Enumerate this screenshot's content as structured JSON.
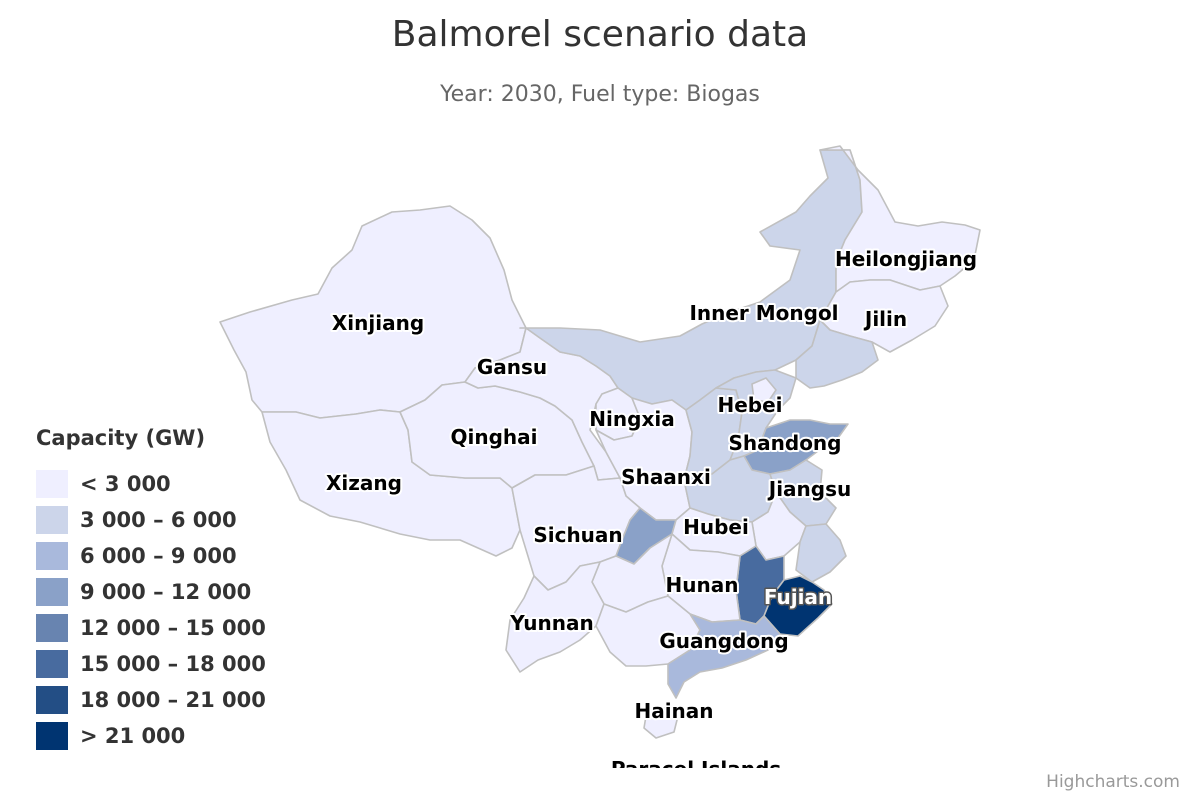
{
  "title": "Balmorel scenario data",
  "subtitle": "Year: 2030, Fuel type: Biogas",
  "credits": "Highcharts.com",
  "legend": {
    "title": "Capacity (GW)",
    "items": [
      {
        "label": "< 3 000",
        "color": "#efefff"
      },
      {
        "label": "3 000 – 6 000",
        "color": "#ccd5ea"
      },
      {
        "label": "6 000 – 9 000",
        "color": "#a9b9dc"
      },
      {
        "label": "9 000 – 12 000",
        "color": "#8aa1c8"
      },
      {
        "label": "12 000 – 15 000",
        "color": "#6884b0"
      },
      {
        "label": "15 000 – 18 000",
        "color": "#486b9f"
      },
      {
        "label": "18 000 – 21 000",
        "color": "#234e85"
      },
      {
        "label": "> 21 000",
        "color": "#003471"
      }
    ]
  },
  "regions": [
    {
      "id": "xinjiang",
      "label": "Xinjiang",
      "bin": 0
    },
    {
      "id": "xizang",
      "label": "Xizang",
      "bin": 0
    },
    {
      "id": "qinghai",
      "label": "Qinghai",
      "bin": 0
    },
    {
      "id": "gansu",
      "label": "Gansu",
      "bin": 0
    },
    {
      "id": "inner-mongol",
      "label": "Inner Mongol",
      "bin": 1
    },
    {
      "id": "heilongjiang",
      "label": "Heilongjiang",
      "bin": 0
    },
    {
      "id": "jilin",
      "label": "Jilin",
      "bin": 0
    },
    {
      "id": "liaoning",
      "label": "",
      "bin": 1
    },
    {
      "id": "ningxia",
      "label": "Ningxia",
      "bin": 0
    },
    {
      "id": "shaanxi",
      "label": "Shaanxi",
      "bin": 0
    },
    {
      "id": "shanxi",
      "label": "",
      "bin": 1
    },
    {
      "id": "hebei",
      "label": "Hebei",
      "bin": 1
    },
    {
      "id": "beijing",
      "label": "",
      "bin": 0
    },
    {
      "id": "shandong",
      "label": "Shandong",
      "bin": 3
    },
    {
      "id": "henan",
      "label": "",
      "bin": 1
    },
    {
      "id": "jiangsu",
      "label": "Jiangsu",
      "bin": 1
    },
    {
      "id": "anhui",
      "label": "",
      "bin": 0
    },
    {
      "id": "sichuan",
      "label": "Sichuan",
      "bin": 0
    },
    {
      "id": "chongqing",
      "label": "",
      "bin": 3
    },
    {
      "id": "hubei",
      "label": "Hubei",
      "bin": 0
    },
    {
      "id": "zhejiang",
      "label": "",
      "bin": 1
    },
    {
      "id": "jiangxi",
      "label": "",
      "bin": 5
    },
    {
      "id": "fujian",
      "label": "Fujian",
      "bin": 7
    },
    {
      "id": "hunan",
      "label": "Hunan",
      "bin": 0
    },
    {
      "id": "guizhou",
      "label": "",
      "bin": 0
    },
    {
      "id": "yunnan",
      "label": "Yunnan",
      "bin": 0
    },
    {
      "id": "guangxi",
      "label": "",
      "bin": 0
    },
    {
      "id": "guangdong",
      "label": "Guangdong",
      "bin": 2
    },
    {
      "id": "hainan",
      "label": "Hainan",
      "bin": 0
    },
    {
      "id": "paracel-islands",
      "label": "Paracel Islands",
      "bin": 0
    }
  ]
}
